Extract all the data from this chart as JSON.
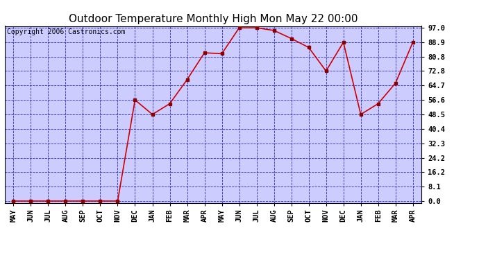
{
  "title": "Outdoor Temperature Monthly High Mon May 22 00:00",
  "copyright_text": "Copyright 2006 Castronics.com",
  "x_labels": [
    "MAY",
    "JUN",
    "JUL",
    "AUG",
    "SEP",
    "OCT",
    "NOV",
    "DEC",
    "JAN",
    "FEB",
    "MAR",
    "APR",
    "MAY",
    "JUN",
    "JUL",
    "AUG",
    "SEP",
    "OCT",
    "NOV",
    "DEC",
    "JAN",
    "FEB",
    "MAR",
    "APR"
  ],
  "y_values": [
    0.0,
    0.0,
    0.0,
    0.0,
    0.0,
    0.0,
    0.0,
    56.6,
    48.5,
    54.5,
    68.0,
    83.0,
    82.5,
    97.0,
    97.0,
    95.5,
    91.0,
    86.0,
    72.8,
    88.9,
    48.5,
    54.5,
    66.0,
    88.9
  ],
  "y_ticks": [
    0.0,
    8.1,
    16.2,
    24.2,
    32.3,
    40.4,
    48.5,
    56.6,
    64.7,
    72.8,
    80.8,
    88.9,
    97.0
  ],
  "ylim": [
    0.0,
    97.0
  ],
  "line_color": "#cc0000",
  "marker_color": "#880000",
  "marker": "s",
  "marker_size": 3,
  "figure_bg_color": "#ffffff",
  "plot_bg_color": "#ccccff",
  "grid_color": "#0000cc",
  "title_fontsize": 11,
  "copyright_fontsize": 7,
  "tick_fontsize": 7.5,
  "border_color": "#000000"
}
